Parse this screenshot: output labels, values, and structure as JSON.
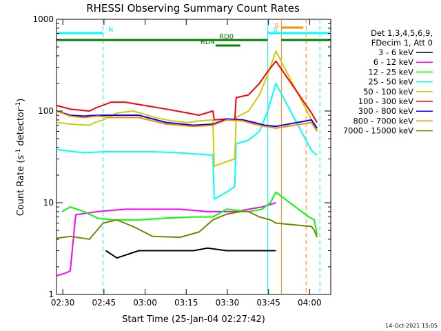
{
  "chart_data": {
    "type": "line",
    "title": "RHESSI Observing Summary Count Rates",
    "xlabel": "Start Time (25-Jan-04 02:27:42)",
    "ylabel": "Count Rate (s",
    "ylabel_sup": "-1",
    "ylabel_mid": " detector",
    "ylabel_end": ")",
    "x_unit": "minutes after 02:27:42",
    "xlim": [
      0,
      100
    ],
    "ylim": [
      1,
      1000
    ],
    "yscale": "log",
    "grid": false,
    "legend_position": "right",
    "x_ticks": [
      {
        "t": 2.3,
        "label": "02:30"
      },
      {
        "t": 17.3,
        "label": "02:45"
      },
      {
        "t": 32.3,
        "label": "03:00"
      },
      {
        "t": 47.3,
        "label": "03:15"
      },
      {
        "t": 62.3,
        "label": "03:30"
      },
      {
        "t": 77.3,
        "label": "03:45"
      },
      {
        "t": 92.3,
        "label": "04:00"
      }
    ],
    "y_ticks": [
      {
        "v": 1,
        "label": "1"
      },
      {
        "v": 10,
        "label": "10"
      },
      {
        "v": 100,
        "label": "100"
      },
      {
        "v": 1000,
        "label": "1000"
      }
    ],
    "legend_header": [
      "Det 1,3,4,5,6,9,",
      "FDecim 1, Att 0"
    ],
    "series": [
      {
        "name": "3 - 6 keV",
        "color": "#000000",
        "points": [
          [
            18,
            3
          ],
          [
            22,
            2.5
          ],
          [
            30,
            3
          ],
          [
            40,
            3
          ],
          [
            50,
            3
          ],
          [
            55,
            3.2
          ],
          [
            62,
            3
          ],
          [
            70,
            3
          ],
          [
            78,
            3
          ],
          [
            80,
            3
          ]
        ]
      },
      {
        "name": "6 - 12 keV",
        "color": "#ff00ff",
        "points": [
          [
            0,
            1.6
          ],
          [
            3,
            1.7
          ],
          [
            5,
            1.8
          ],
          [
            7,
            7.4
          ],
          [
            15,
            8
          ],
          [
            25,
            8.5
          ],
          [
            35,
            8.5
          ],
          [
            45,
            8.5
          ],
          [
            55,
            8
          ],
          [
            65,
            8
          ],
          [
            75,
            9
          ],
          [
            80,
            10
          ]
        ]
      },
      {
        "name": "12 - 25 keV",
        "color": "#00ff00",
        "points": [
          [
            2,
            8
          ],
          [
            5,
            9
          ],
          [
            10,
            8
          ],
          [
            15,
            6.8
          ],
          [
            20,
            6.5
          ],
          [
            30,
            6.5
          ],
          [
            40,
            6.8
          ],
          [
            50,
            7
          ],
          [
            57,
            7
          ],
          [
            62,
            8.5
          ],
          [
            70,
            8
          ],
          [
            75,
            8.5
          ],
          [
            78,
            10
          ],
          [
            80,
            13
          ],
          [
            92,
            7
          ],
          [
            94,
            6.5
          ],
          [
            95,
            4.5
          ]
        ]
      },
      {
        "name": "25 - 50 keV",
        "color": "#00ffff",
        "points": [
          [
            0,
            38
          ],
          [
            10,
            35
          ],
          [
            17,
            36
          ],
          [
            25,
            36
          ],
          [
            35,
            36
          ],
          [
            45,
            35
          ],
          [
            57,
            33
          ],
          [
            57.5,
            11
          ],
          [
            62,
            13
          ],
          [
            65,
            15
          ],
          [
            65.5,
            44
          ],
          [
            70,
            48
          ],
          [
            74,
            60
          ],
          [
            77,
            100
          ],
          [
            80,
            200
          ],
          [
            93,
            37
          ],
          [
            95,
            33
          ]
        ]
      },
      {
        "name": "50 - 100 keV",
        "color": "#cccc00",
        "points": [
          [
            0,
            75
          ],
          [
            5,
            72
          ],
          [
            12,
            70
          ],
          [
            14,
            75
          ],
          [
            17,
            80
          ],
          [
            22,
            95
          ],
          [
            28,
            100
          ],
          [
            36,
            85
          ],
          [
            42,
            78
          ],
          [
            48,
            75
          ],
          [
            52,
            78
          ],
          [
            57,
            80
          ],
          [
            57.5,
            25
          ],
          [
            62,
            28
          ],
          [
            65,
            30
          ],
          [
            65.5,
            85
          ],
          [
            70,
            100
          ],
          [
            74,
            150
          ],
          [
            77,
            250
          ],
          [
            80,
            450
          ],
          [
            93,
            80
          ],
          [
            95,
            62
          ]
        ]
      },
      {
        "name": "100 - 300 keV",
        "color": "#ff0000",
        "points": [
          [
            0,
            115
          ],
          [
            5,
            105
          ],
          [
            12,
            100
          ],
          [
            15,
            110
          ],
          [
            20,
            125
          ],
          [
            25,
            125
          ],
          [
            32,
            115
          ],
          [
            40,
            105
          ],
          [
            48,
            95
          ],
          [
            52,
            90
          ],
          [
            57,
            100
          ],
          [
            57.5,
            80
          ],
          [
            62,
            82
          ],
          [
            65,
            80
          ],
          [
            65.5,
            140
          ],
          [
            70,
            150
          ],
          [
            74,
            200
          ],
          [
            77,
            270
          ],
          [
            80,
            350
          ],
          [
            93,
            95
          ],
          [
            95,
            75
          ]
        ]
      },
      {
        "name": "300 - 800 keV",
        "color": "#0000ff",
        "points": [
          [
            0,
            100
          ],
          [
            5,
            90
          ],
          [
            10,
            88
          ],
          [
            15,
            90
          ],
          [
            20,
            90
          ],
          [
            30,
            90
          ],
          [
            40,
            75
          ],
          [
            50,
            70
          ],
          [
            57,
            72
          ],
          [
            62,
            82
          ],
          [
            68,
            80
          ],
          [
            72,
            75
          ],
          [
            76,
            70
          ],
          [
            80,
            68
          ],
          [
            93,
            80
          ],
          [
            95,
            65
          ]
        ]
      },
      {
        "name": "800 - 7000 keV",
        "color": "#ff8800",
        "points": [
          [
            0,
            100
          ],
          [
            5,
            88
          ],
          [
            10,
            85
          ],
          [
            15,
            88
          ],
          [
            20,
            85
          ],
          [
            30,
            85
          ],
          [
            40,
            72
          ],
          [
            50,
            68
          ],
          [
            57,
            70
          ],
          [
            62,
            80
          ],
          [
            68,
            78
          ],
          [
            72,
            72
          ],
          [
            76,
            68
          ],
          [
            80,
            65
          ],
          [
            93,
            75
          ],
          [
            95,
            60
          ]
        ]
      },
      {
        "name": "7000 - 15000 keV",
        "color": "#808000",
        "points": [
          [
            0,
            4.1
          ],
          [
            5,
            4.3
          ],
          [
            12,
            4
          ],
          [
            17,
            6
          ],
          [
            22,
            6.5
          ],
          [
            28,
            5.5
          ],
          [
            35,
            4.3
          ],
          [
            45,
            4.2
          ],
          [
            52,
            4.8
          ],
          [
            57,
            6.5
          ],
          [
            62,
            7.5
          ],
          [
            67,
            8
          ],
          [
            70,
            8
          ],
          [
            74,
            7
          ],
          [
            78,
            6.5
          ],
          [
            80,
            6
          ],
          [
            93,
            5.5
          ],
          [
            94,
            5
          ],
          [
            95,
            4.2
          ]
        ]
      }
    ],
    "attenuator_bars": [
      {
        "label": "N",
        "color": "#00ffff",
        "start": 0,
        "end": 17
      },
      {
        "label": "S",
        "color": "#00ffff",
        "start": 77,
        "end": 100
      }
    ],
    "decimation_bars": [
      {
        "label": "RD0",
        "color": "#008000",
        "start": 0,
        "end": 77
      },
      {
        "label": "RD0",
        "color": "#008000",
        "start": 82,
        "end": 100
      },
      {
        "label": "RD4",
        "color": "#008000",
        "start": 58,
        "end": 67
      }
    ],
    "saa_bar": {
      "label": "S",
      "color": "#ff8800",
      "start": 82,
      "end": 90
    },
    "vlines": [
      {
        "t": 17,
        "color": "#00ffff",
        "dash": true
      },
      {
        "t": 77,
        "color": "#00ffff",
        "dash": false
      },
      {
        "t": 82,
        "color": "#ff8800",
        "dash": false
      },
      {
        "t": 91,
        "color": "#ff8800",
        "dash": true
      },
      {
        "t": 96,
        "color": "#00ffff",
        "dash": true
      }
    ],
    "footer_date": "14-Oct-2021 15:05"
  }
}
